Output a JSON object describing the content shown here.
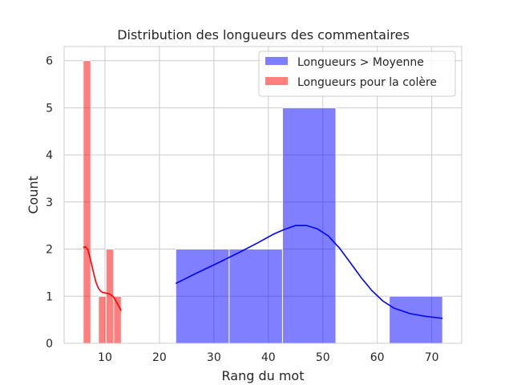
{
  "chart_data": {
    "type": "bar",
    "title": "Distribution des longueurs des commentaires",
    "xlabel": "Rang du mot",
    "ylabel": "Count",
    "xlim": [
      2.5,
      75.5
    ],
    "ylim": [
      0,
      6.3
    ],
    "xticks": [
      10,
      20,
      30,
      40,
      50,
      60,
      70
    ],
    "yticks": [
      0,
      1,
      2,
      3,
      4,
      5,
      6
    ],
    "grid": true,
    "legend_position": "top-right",
    "series": [
      {
        "name": "Longueurs > Moyenne",
        "color": "#0000ff",
        "bins": [
          {
            "x0": 23,
            "x1": 32.8,
            "count": 2
          },
          {
            "x0": 32.8,
            "x1": 42.6,
            "count": 2
          },
          {
            "x0": 42.6,
            "x1": 52.4,
            "count": 5
          },
          {
            "x0": 52.4,
            "x1": 62.2,
            "count": 0
          },
          {
            "x0": 62.2,
            "x1": 72,
            "count": 1
          }
        ],
        "kde": [
          [
            23,
            1.27
          ],
          [
            27,
            1.5
          ],
          [
            31,
            1.72
          ],
          [
            35,
            1.95
          ],
          [
            38,
            2.13
          ],
          [
            41,
            2.32
          ],
          [
            43,
            2.42
          ],
          [
            45,
            2.5
          ],
          [
            47,
            2.5
          ],
          [
            49,
            2.43
          ],
          [
            51,
            2.28
          ],
          [
            53,
            2.03
          ],
          [
            55,
            1.72
          ],
          [
            57,
            1.4
          ],
          [
            59,
            1.12
          ],
          [
            61,
            0.9
          ],
          [
            63,
            0.75
          ],
          [
            66,
            0.63
          ],
          [
            69,
            0.57
          ],
          [
            72,
            0.53
          ]
        ]
      },
      {
        "name": "Longueurs pour la colère",
        "color": "#ff0000",
        "bins": [
          {
            "x0": 6,
            "x1": 7.4,
            "count": 6
          },
          {
            "x0": 7.4,
            "x1": 8.8,
            "count": 0
          },
          {
            "x0": 8.8,
            "x1": 10.2,
            "count": 1
          },
          {
            "x0": 10.2,
            "x1": 11.6,
            "count": 2
          },
          {
            "x0": 11.6,
            "x1": 13,
            "count": 1
          }
        ],
        "kde": [
          [
            6,
            2.03
          ],
          [
            6.4,
            2.05
          ],
          [
            6.8,
            2.0
          ],
          [
            7.2,
            1.85
          ],
          [
            7.6,
            1.65
          ],
          [
            8.0,
            1.45
          ],
          [
            8.4,
            1.28
          ],
          [
            8.8,
            1.17
          ],
          [
            9.2,
            1.11
          ],
          [
            9.6,
            1.08
          ],
          [
            10.0,
            1.07
          ],
          [
            10.4,
            1.06
          ],
          [
            10.8,
            1.05
          ],
          [
            11.2,
            1.02
          ],
          [
            11.6,
            0.98
          ],
          [
            12.0,
            0.9
          ],
          [
            12.4,
            0.82
          ],
          [
            12.8,
            0.73
          ],
          [
            13.0,
            0.69
          ]
        ]
      }
    ]
  }
}
